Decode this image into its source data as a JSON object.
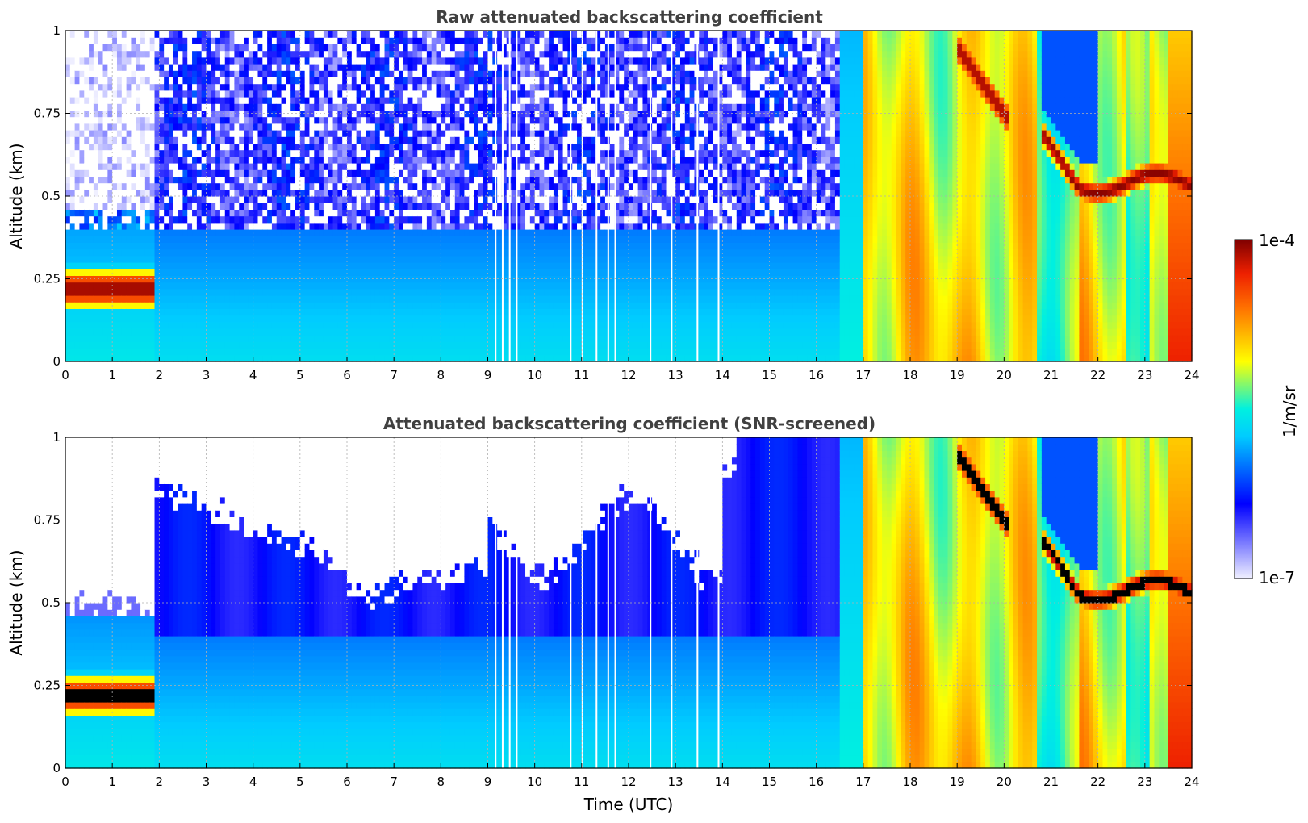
{
  "chart_data": [
    {
      "type": "heatmap",
      "title": "Raw attenuated backscattering coefficient",
      "xlabel": "",
      "ylabel": "Altitude (km)",
      "xlim": [
        0,
        24
      ],
      "ylim": [
        0,
        1
      ],
      "x_ticks": [
        "0",
        "1",
        "2",
        "3",
        "4",
        "5",
        "6",
        "7",
        "8",
        "9",
        "10",
        "11",
        "12",
        "13",
        "14",
        "15",
        "16",
        "17",
        "18",
        "19",
        "20",
        "21",
        "22",
        "23",
        "24"
      ],
      "y_ticks": [
        "0",
        "0.25",
        "0.5",
        "0.75",
        "1"
      ],
      "grid": true,
      "screened": false
    },
    {
      "type": "heatmap",
      "title": "Attenuated backscattering coefficient (SNR-screened)",
      "xlabel": "Time (UTC)",
      "ylabel": "Altitude (km)",
      "xlim": [
        0,
        24
      ],
      "ylim": [
        0,
        1
      ],
      "x_ticks": [
        "0",
        "1",
        "2",
        "3",
        "4",
        "5",
        "6",
        "7",
        "8",
        "9",
        "10",
        "11",
        "12",
        "13",
        "14",
        "15",
        "16",
        "17",
        "18",
        "19",
        "20",
        "21",
        "22",
        "23",
        "24"
      ],
      "y_ticks": [
        "0",
        "0.25",
        "0.5",
        "0.75",
        "1"
      ],
      "grid": true,
      "screened": true
    }
  ],
  "colorbar": {
    "label": "1/m/sr",
    "max_label": "1e-4",
    "min_label": "1e-7",
    "scale": "log",
    "range": [
      1e-07,
      0.0001
    ],
    "colormap": [
      "#f0f0ff",
      "#0000ff",
      "#00e8ff",
      "#ffff00",
      "#ff6a00",
      "#7f0000"
    ]
  }
}
